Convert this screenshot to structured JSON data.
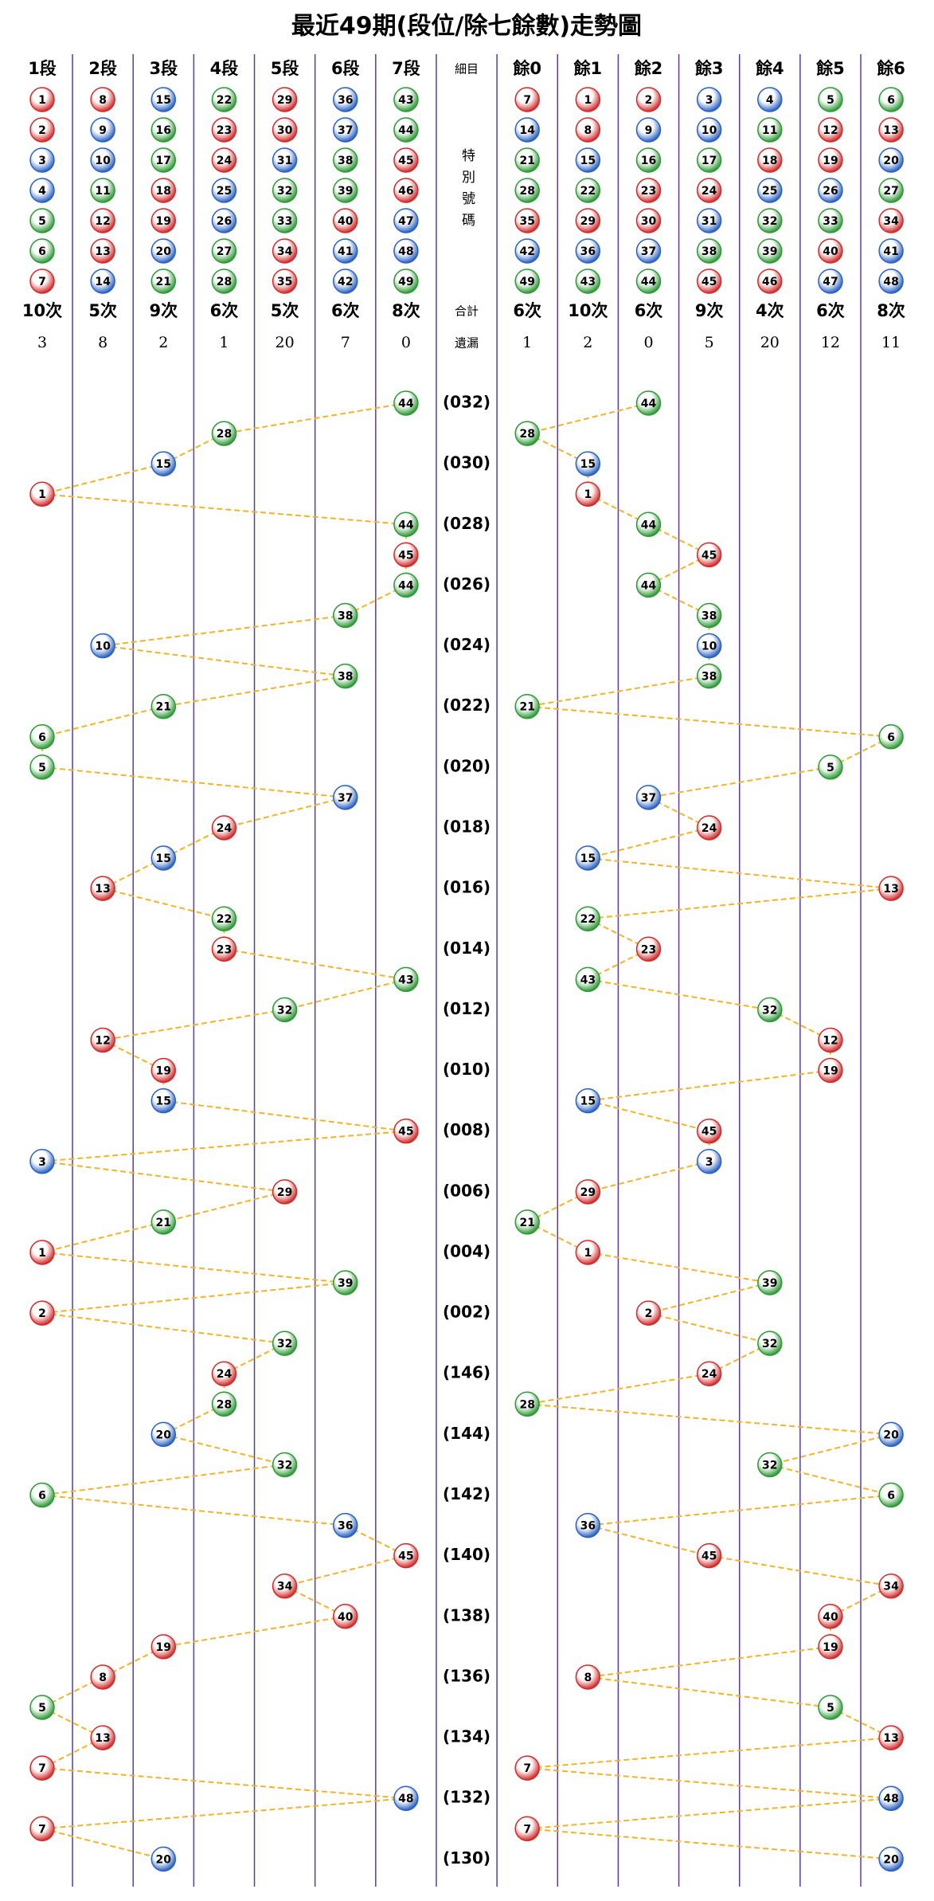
{
  "title": "最近49期(段位/除七餘數)走勢圖",
  "segment_headers": [
    "1段",
    "2段",
    "3段",
    "4段",
    "5段",
    "6段",
    "7段"
  ],
  "middle_header": "細目",
  "remainder_headers": [
    "餘0",
    "餘1",
    "餘2",
    "餘3",
    "餘4",
    "餘5",
    "餘6"
  ],
  "segment_numbers": [
    [
      1,
      2,
      3,
      4,
      5,
      6,
      7
    ],
    [
      8,
      9,
      10,
      11,
      12,
      13,
      14
    ],
    [
      15,
      16,
      17,
      18,
      19,
      20,
      21
    ],
    [
      22,
      23,
      24,
      25,
      26,
      27,
      28
    ],
    [
      29,
      30,
      31,
      32,
      33,
      34,
      35
    ],
    [
      36,
      37,
      38,
      39,
      40,
      41,
      42
    ],
    [
      43,
      44,
      45,
      46,
      47,
      48,
      49
    ]
  ],
  "remainder_numbers": [
    [
      7,
      14,
      21,
      28,
      35,
      42,
      49
    ],
    [
      1,
      8,
      15,
      22,
      29,
      36,
      43
    ],
    [
      2,
      9,
      16,
      23,
      30,
      37,
      44
    ],
    [
      3,
      10,
      17,
      24,
      31,
      38,
      45
    ],
    [
      4,
      11,
      18,
      25,
      32,
      39,
      46
    ],
    [
      5,
      12,
      19,
      26,
      33,
      40,
      47
    ],
    [
      6,
      13,
      20,
      27,
      34,
      41,
      48
    ]
  ],
  "middle_note": "特別號碼",
  "total_label": "合計",
  "segment_counts": [
    "10次",
    "5次",
    "9次",
    "6次",
    "5次",
    "6次",
    "8次"
  ],
  "remainder_counts": [
    "6次",
    "10次",
    "6次",
    "9次",
    "4次",
    "6次",
    "8次"
  ],
  "missing_label": "遺漏",
  "segment_missing": [
    3,
    8,
    2,
    1,
    20,
    7,
    0
  ],
  "remainder_missing": [
    1,
    2,
    0,
    5,
    20,
    12,
    11
  ],
  "draws": {
    "numbers": [
      44,
      28,
      15,
      1,
      44,
      45,
      44,
      38,
      10,
      38,
      21,
      6,
      5,
      37,
      24,
      15,
      13,
      22,
      23,
      43,
      32,
      12,
      19,
      15,
      45,
      3,
      29,
      21,
      1,
      39,
      2,
      32,
      24,
      28,
      20,
      32,
      6,
      36,
      45,
      34,
      40,
      19,
      8,
      5,
      13,
      7,
      48,
      7,
      20
    ],
    "periods": [
      "(032)",
      null,
      "(030)",
      null,
      "(028)",
      null,
      "(026)",
      null,
      "(024)",
      null,
      "(022)",
      null,
      "(020)",
      null,
      "(018)",
      null,
      "(016)",
      null,
      "(014)",
      null,
      "(012)",
      null,
      "(010)",
      null,
      "(008)",
      null,
      "(006)",
      null,
      "(004)",
      null,
      "(002)",
      null,
      "(146)",
      null,
      "(144)",
      null,
      "(142)",
      null,
      "(140)",
      null,
      "(138)",
      null,
      "(136)",
      null,
      "(134)",
      null,
      "(132)",
      null,
      "(130)"
    ]
  },
  "ball_palette": {
    "r": "#d22b2b",
    "b": "#2a62c4",
    "g": "#2e9a36"
  },
  "number_colors": [
    "r",
    "r",
    "b",
    "b",
    "g",
    "g",
    "r",
    "r",
    "b",
    "b",
    "g",
    "r",
    "r",
    "b",
    "b",
    "g",
    "g",
    "r",
    "r",
    "b",
    "g",
    "g",
    "r",
    "r",
    "b",
    "b",
    "g",
    "g",
    "r",
    "r",
    "b",
    "g",
    "g",
    "r",
    "r",
    "b",
    "b",
    "g",
    "g",
    "r",
    "b",
    "b",
    "g",
    "g",
    "r",
    "r",
    "b",
    "b",
    "g"
  ],
  "line_color": "#f0b428",
  "divider_color": "#5a3c9c"
}
